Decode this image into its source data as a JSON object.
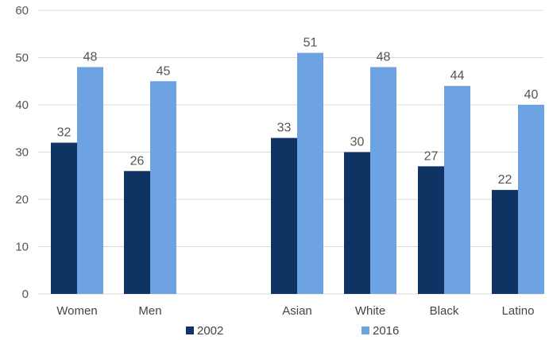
{
  "chart_data": {
    "type": "bar",
    "title": "",
    "xlabel": "",
    "ylabel": "",
    "categories": [
      "Women",
      "Men",
      "",
      "Asian",
      "White",
      "Black",
      "Latino"
    ],
    "series": [
      {
        "name": "2002",
        "values": [
          32,
          26,
          null,
          33,
          30,
          27,
          22
        ],
        "color": "#0f3463"
      },
      {
        "name": "2016",
        "values": [
          48,
          45,
          null,
          51,
          48,
          44,
          40
        ],
        "color": "#6ea3e3"
      }
    ],
    "ylim": [
      0,
      60
    ],
    "yticks": [
      0,
      10,
      20,
      30,
      40,
      50,
      60
    ],
    "grid": true,
    "legend_position": "bottom",
    "data_labels": true
  }
}
